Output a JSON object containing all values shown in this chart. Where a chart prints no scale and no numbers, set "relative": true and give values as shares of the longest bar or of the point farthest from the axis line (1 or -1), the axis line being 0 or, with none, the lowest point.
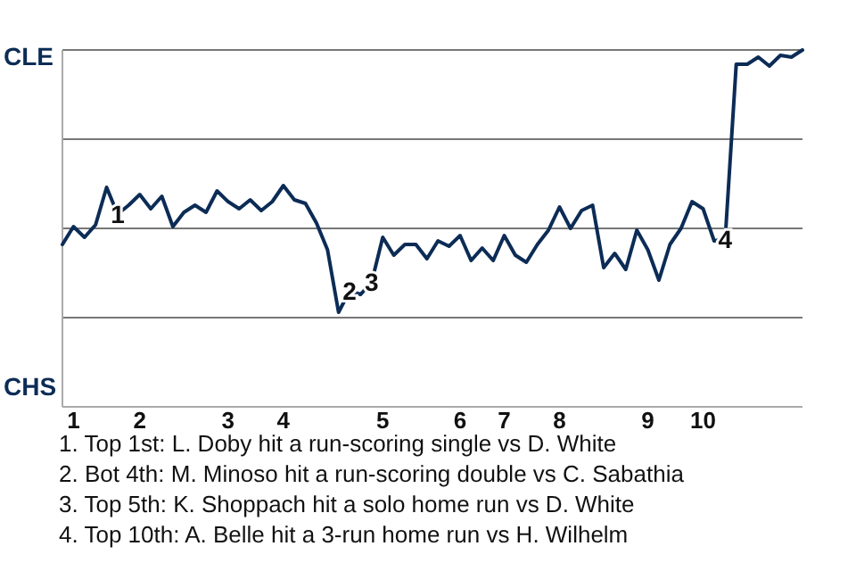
{
  "chart_data": {
    "type": "line",
    "relative": true,
    "categories": [
      null,
      "1",
      null,
      null,
      null,
      null,
      null,
      "2",
      null,
      null,
      null,
      null,
      null,
      null,
      null,
      "3",
      null,
      null,
      null,
      null,
      "4",
      null,
      null,
      null,
      null,
      null,
      null,
      null,
      null,
      "5",
      null,
      null,
      null,
      null,
      null,
      null,
      "6",
      null,
      null,
      null,
      "7",
      null,
      null,
      null,
      null,
      "8",
      null,
      null,
      null,
      null,
      null,
      null,
      null,
      "9",
      null,
      null,
      null,
      null,
      "10",
      null,
      null,
      null,
      null,
      null,
      null,
      null,
      null,
      null
    ],
    "series": [
      {
        "color": "#0c2c56",
        "values": [
          0.455,
          0.505,
          0.475,
          0.51,
          0.615,
          0.54,
          0.565,
          0.595,
          0.555,
          0.59,
          0.505,
          0.545,
          0.565,
          0.545,
          0.605,
          0.575,
          0.555,
          0.58,
          0.55,
          0.575,
          0.62,
          0.58,
          0.57,
          0.515,
          0.44,
          0.265,
          0.325,
          0.315,
          0.35,
          0.475,
          0.425,
          0.455,
          0.455,
          0.415,
          0.465,
          0.45,
          0.48,
          0.41,
          0.445,
          0.41,
          0.48,
          0.425,
          0.405,
          0.455,
          0.495,
          0.56,
          0.5,
          0.55,
          0.565,
          0.39,
          0.43,
          0.385,
          0.495,
          0.44,
          0.355,
          0.455,
          0.5,
          0.575,
          0.555,
          0.465,
          0.47,
          0.96,
          0.96,
          0.98,
          0.955,
          0.985,
          0.98,
          1
        ]
      }
    ],
    "ref_lines": [
      {
        "axis": "y",
        "value": 0.25,
        "color": "#777777"
      },
      {
        "axis": "y",
        "value": 0.5,
        "color": "#777777"
      },
      {
        "axis": "y",
        "value": 0.75,
        "color": "#777777"
      },
      {
        "axis": "y",
        "value": 1,
        "color": "#777777"
      }
    ],
    "annotations": [
      "CLE",
      "CHS",
      {
        "text": "1",
        "y": 0.54
      },
      {
        "text": "2",
        "y": 0.325
      },
      {
        "text": "3",
        "y": 0.35
      },
      {
        "text": "4",
        "y": 0.47
      },
      "1. Top 1st: L. Doby hit a run-scoring single vs D. White",
      "2. Bot 4th: M. Minoso hit a run-scoring double vs C. Sabathia",
      "3. Top 5th: K. Shoppach hit a solo home run vs D. White",
      "4. Top 10th: A. Belle hit a 3-run home run vs H. Wilhelm"
    ]
  }
}
